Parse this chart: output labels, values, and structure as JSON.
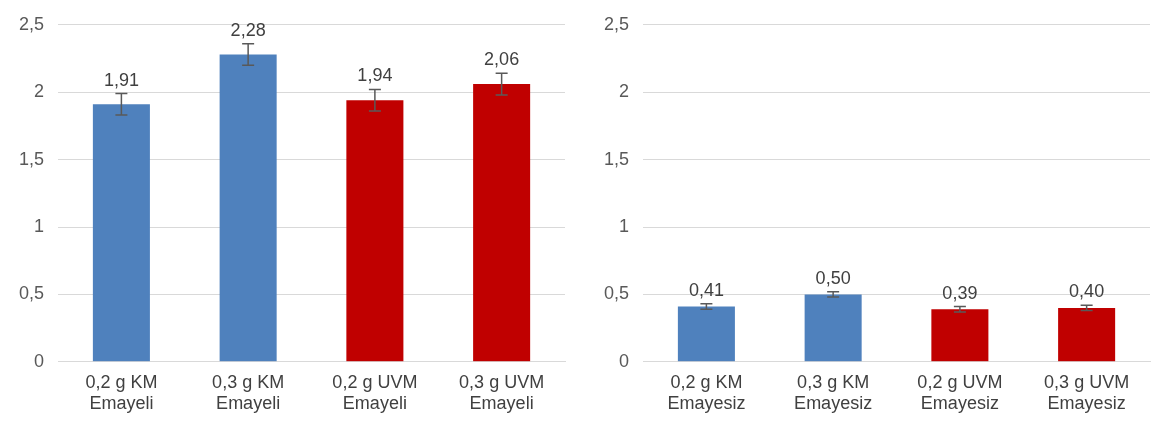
{
  "chart_data": [
    {
      "type": "bar",
      "categories": [
        "0,2 g KM Emayeli",
        "0,3 g KM Emayeli",
        "0,2 g UVM Emayeli",
        "0,3 g UVM Emayeli"
      ],
      "values": [
        1.91,
        2.28,
        1.94,
        2.06
      ],
      "colors": [
        "#4f81bd",
        "#4f81bd",
        "#c00000",
        "#c00000"
      ],
      "errors": [
        0.08,
        0.08,
        0.08,
        0.08
      ],
      "value_labels": [
        "1,91",
        "2,28",
        "1,94",
        "2,06"
      ],
      "ylim": [
        0,
        2.5
      ],
      "yticks": [
        0,
        {
          "value": 0.5,
          "label": "0,5"
        },
        1,
        {
          "value": 1.5,
          "label": "1,5"
        },
        2,
        {
          "value": 2.5,
          "label": "2,5"
        }
      ],
      "grid": "y",
      "legend": false
    },
    {
      "type": "bar",
      "categories": [
        "0,2 g KM Emayesiz",
        "0,3 g KM Emayesiz",
        "0,2 g UVM Emayesiz",
        "0,3 g UVM Emayesiz"
      ],
      "values": [
        0.41,
        0.5,
        0.39,
        0.4
      ],
      "colors": [
        "#4f81bd",
        "#4f81bd",
        "#c00000",
        "#c00000"
      ],
      "errors": [
        0.02,
        0.02,
        0.02,
        0.02
      ],
      "value_labels": [
        "0,41",
        "0,50",
        "0,39",
        "0,40"
      ],
      "ylim": [
        0,
        2.5
      ],
      "yticks": [
        0,
        {
          "value": 0.5,
          "label": "0,5"
        },
        1,
        {
          "value": 1.5,
          "label": "1,5"
        },
        2,
        {
          "value": 2.5,
          "label": "2,5"
        }
      ],
      "grid": "y",
      "legend": false
    }
  ]
}
